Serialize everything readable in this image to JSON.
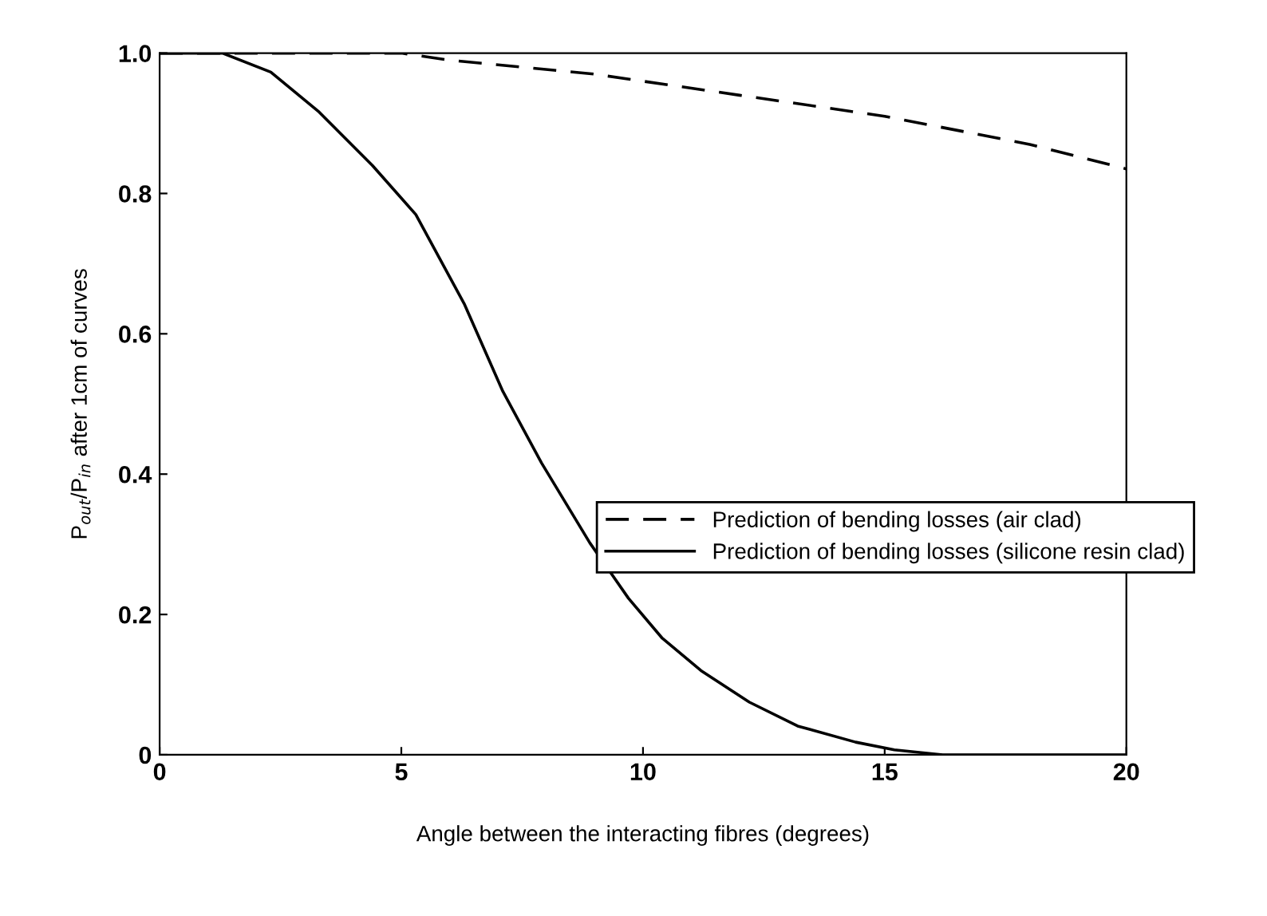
{
  "chart_data": {
    "type": "line",
    "xlabel": "Angle between the interacting fibres (degrees)",
    "ylabel": "P$_{out}$/P$_{in}$ after 1cm of curves",
    "xlim": [
      0,
      20
    ],
    "ylim": [
      0,
      1.0
    ],
    "xticks": [
      0,
      5,
      10,
      15,
      20
    ],
    "yticks": [
      {
        "value": 0,
        "label": "0"
      },
      0.2,
      0.4,
      0.6,
      0.8,
      {
        "value": 1.0,
        "label": "1.0"
      }
    ],
    "grid": false,
    "legend": "right",
    "marker": "none",
    "series": [
      {
        "name": "Prediction of bending losses (air clad)",
        "color": "#000000",
        "line_style": "dashed",
        "x": [
          0,
          5,
          6,
          9,
          12,
          15,
          18,
          20
        ],
        "values": [
          1.0,
          1.0,
          0.99,
          0.97,
          0.94,
          0.91,
          0.87,
          0.835
        ]
      },
      {
        "name": "Prediction of bending losses (silicone resin clad)",
        "color": "#000000",
        "line_style": "solid",
        "x": [
          0,
          1.3,
          2.3,
          3.3,
          4.4,
          5.3,
          6.3,
          7.1,
          7.9,
          8.9,
          9.7,
          10.4,
          11.2,
          12.2,
          13.2,
          14.4,
          15.2,
          16.2,
          20
        ],
        "values": [
          1.0,
          1.0,
          0.973,
          0.916,
          0.84,
          0.77,
          0.643,
          0.518,
          0.416,
          0.302,
          0.223,
          0.166,
          0.12,
          0.075,
          0.041,
          0.018,
          0.007,
          0,
          0
        ]
      }
    ]
  }
}
